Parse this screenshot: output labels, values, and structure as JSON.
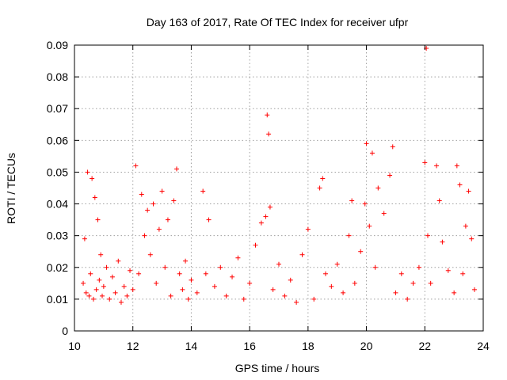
{
  "chart_data": {
    "type": "scatter",
    "title": "Day 163 of 2017, Rate Of TEC Index for receiver ufpr",
    "xlabel": "GPS time / hours",
    "ylabel": "ROTI / TECUs",
    "xlim": [
      10,
      24
    ],
    "ylim": [
      0,
      0.09
    ],
    "xticks": [
      "10",
      "12",
      "14",
      "16",
      "18",
      "20",
      "22",
      "24"
    ],
    "yticks": [
      "0",
      "0.01",
      "0.02",
      "0.03",
      "0.04",
      "0.05",
      "0.06",
      "0.07",
      "0.08",
      "0.09"
    ],
    "grid": true,
    "marker": "+",
    "color": "#ff0000",
    "series": [
      {
        "x": [
          10.3,
          10.35,
          10.4,
          10.45,
          10.5,
          10.55,
          10.6,
          10.65,
          10.7,
          10.75,
          10.8,
          10.85,
          10.9,
          10.95,
          11.0,
          11.1,
          11.2,
          11.3,
          11.4,
          11.5,
          11.6,
          11.7,
          11.8,
          11.9,
          12.0,
          12.1,
          12.2,
          12.3,
          12.4,
          12.5,
          12.6,
          12.7,
          12.8,
          12.9,
          13.0,
          13.1,
          13.2,
          13.3,
          13.4,
          13.5,
          13.6,
          13.7,
          13.8,
          13.9,
          14.0,
          14.2,
          14.4,
          14.5,
          14.6,
          14.8,
          15.0,
          15.2,
          15.4,
          15.6,
          15.8,
          16.0,
          16.2,
          16.4,
          16.55,
          16.6,
          16.65,
          16.7,
          16.8,
          17.0,
          17.2,
          17.4,
          17.6,
          17.8,
          18.0,
          18.2,
          18.4,
          18.5,
          18.6,
          18.8,
          19.0,
          19.2,
          19.4,
          19.5,
          19.6,
          19.8,
          19.95,
          20.0,
          20.1,
          20.2,
          20.3,
          20.4,
          20.6,
          20.8,
          20.9,
          21.0,
          21.2,
          21.4,
          21.6,
          21.8,
          22.0,
          22.05,
          22.1,
          22.2,
          22.4,
          22.5,
          22.6,
          22.8,
          23.0,
          23.1,
          23.2,
          23.3,
          23.4,
          23.5,
          23.6,
          23.7
        ],
        "y": [
          0.015,
          0.029,
          0.012,
          0.05,
          0.011,
          0.018,
          0.048,
          0.01,
          0.042,
          0.013,
          0.035,
          0.016,
          0.024,
          0.011,
          0.014,
          0.02,
          0.01,
          0.017,
          0.012,
          0.022,
          0.009,
          0.014,
          0.011,
          0.019,
          0.013,
          0.052,
          0.018,
          0.043,
          0.03,
          0.038,
          0.024,
          0.04,
          0.015,
          0.032,
          0.044,
          0.02,
          0.035,
          0.011,
          0.041,
          0.051,
          0.018,
          0.013,
          0.022,
          0.01,
          0.016,
          0.012,
          0.044,
          0.018,
          0.035,
          0.014,
          0.02,
          0.011,
          0.017,
          0.023,
          0.01,
          0.015,
          0.027,
          0.034,
          0.036,
          0.068,
          0.062,
          0.039,
          0.013,
          0.021,
          0.011,
          0.016,
          0.009,
          0.024,
          0.032,
          0.01,
          0.045,
          0.048,
          0.018,
          0.014,
          0.021,
          0.012,
          0.03,
          0.041,
          0.015,
          0.025,
          0.04,
          0.059,
          0.033,
          0.056,
          0.02,
          0.045,
          0.037,
          0.049,
          0.058,
          0.012,
          0.018,
          0.01,
          0.015,
          0.02,
          0.053,
          0.089,
          0.03,
          0.015,
          0.052,
          0.041,
          0.028,
          0.019,
          0.012,
          0.052,
          0.046,
          0.018,
          0.033,
          0.044,
          0.029,
          0.013
        ]
      }
    ]
  }
}
